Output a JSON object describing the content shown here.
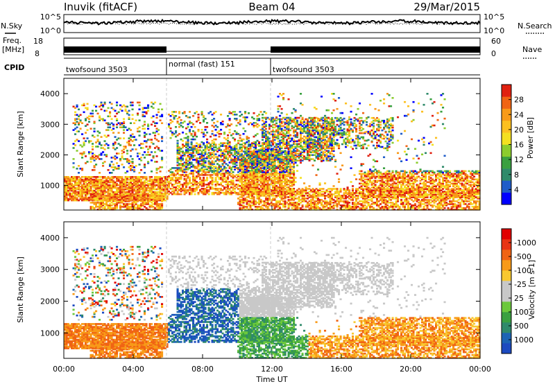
{
  "header": {
    "station": "Inuvik (fitACF)",
    "beam": "Beam 04",
    "date": "29/Mar/2015"
  },
  "noise_panel": {
    "left_label": "N.Sky",
    "right_label": "N.Search",
    "right_style": "dotted",
    "left_ticks": [
      "10^5",
      "10^0"
    ],
    "right_ticks": [
      "10^5",
      "10^0"
    ]
  },
  "freq_panel": {
    "left_label_1": "Freq.",
    "left_label_2": "[MHz]",
    "right_label": "Nave",
    "right_style": "dotted",
    "left_ticks": [
      "18",
      "8"
    ],
    "right_ticks": [
      "60",
      "0"
    ]
  },
  "cpid_panel": {
    "label": "CPID",
    "segments": [
      {
        "start_hour": 0,
        "end_hour": 6,
        "name": "twofsound 3503"
      },
      {
        "start_hour": 6,
        "end_hour": 12,
        "name": "normal (fast) 151"
      },
      {
        "start_hour": 12,
        "end_hour": 24,
        "name": "twofsound 3503"
      }
    ]
  },
  "chart_data": [
    {
      "type": "heatmap",
      "title": "",
      "ylabel": "Slant Range [km]",
      "xlim": [
        0,
        24
      ],
      "ylim": [
        200,
        4500
      ],
      "y_ticks": [
        1000,
        2000,
        3000,
        4000
      ],
      "colorbar": {
        "label": "Power [dB]",
        "ticks": [
          "4",
          "8",
          "12",
          "16",
          "20",
          "24",
          "28"
        ],
        "colors": [
          "#0000ff",
          "#1f5cc8",
          "#2f8a6a",
          "#3aa040",
          "#8ccc2e",
          "#f4e020",
          "#fcc020",
          "#f89a18",
          "#f06414",
          "#e02010"
        ]
      }
    },
    {
      "type": "heatmap",
      "title": "",
      "ylabel": "Slant Range [km]",
      "xlabel": "Time UT",
      "xlim": [
        0,
        24
      ],
      "ylim": [
        200,
        4500
      ],
      "y_ticks": [
        1000,
        2000,
        3000,
        4000
      ],
      "x_ticks": [
        "00:00",
        "04:00",
        "08:00",
        "12:00",
        "16:00",
        "20:00",
        "00:00"
      ],
      "colorbar": {
        "label": "Velocity [m s-1]",
        "ticks": [
          "1000",
          "500",
          "100",
          "25",
          "-25",
          "-100",
          "-500",
          "-1000"
        ],
        "colors": [
          "#1c4ac0",
          "#1c64b4",
          "#2f8a6a",
          "#3aa040",
          "#6cc83c",
          "#c8c8c8",
          "#c8c8c8",
          "#f8c830",
          "#f89a18",
          "#f06414",
          "#e83414",
          "#e00000"
        ]
      }
    }
  ]
}
